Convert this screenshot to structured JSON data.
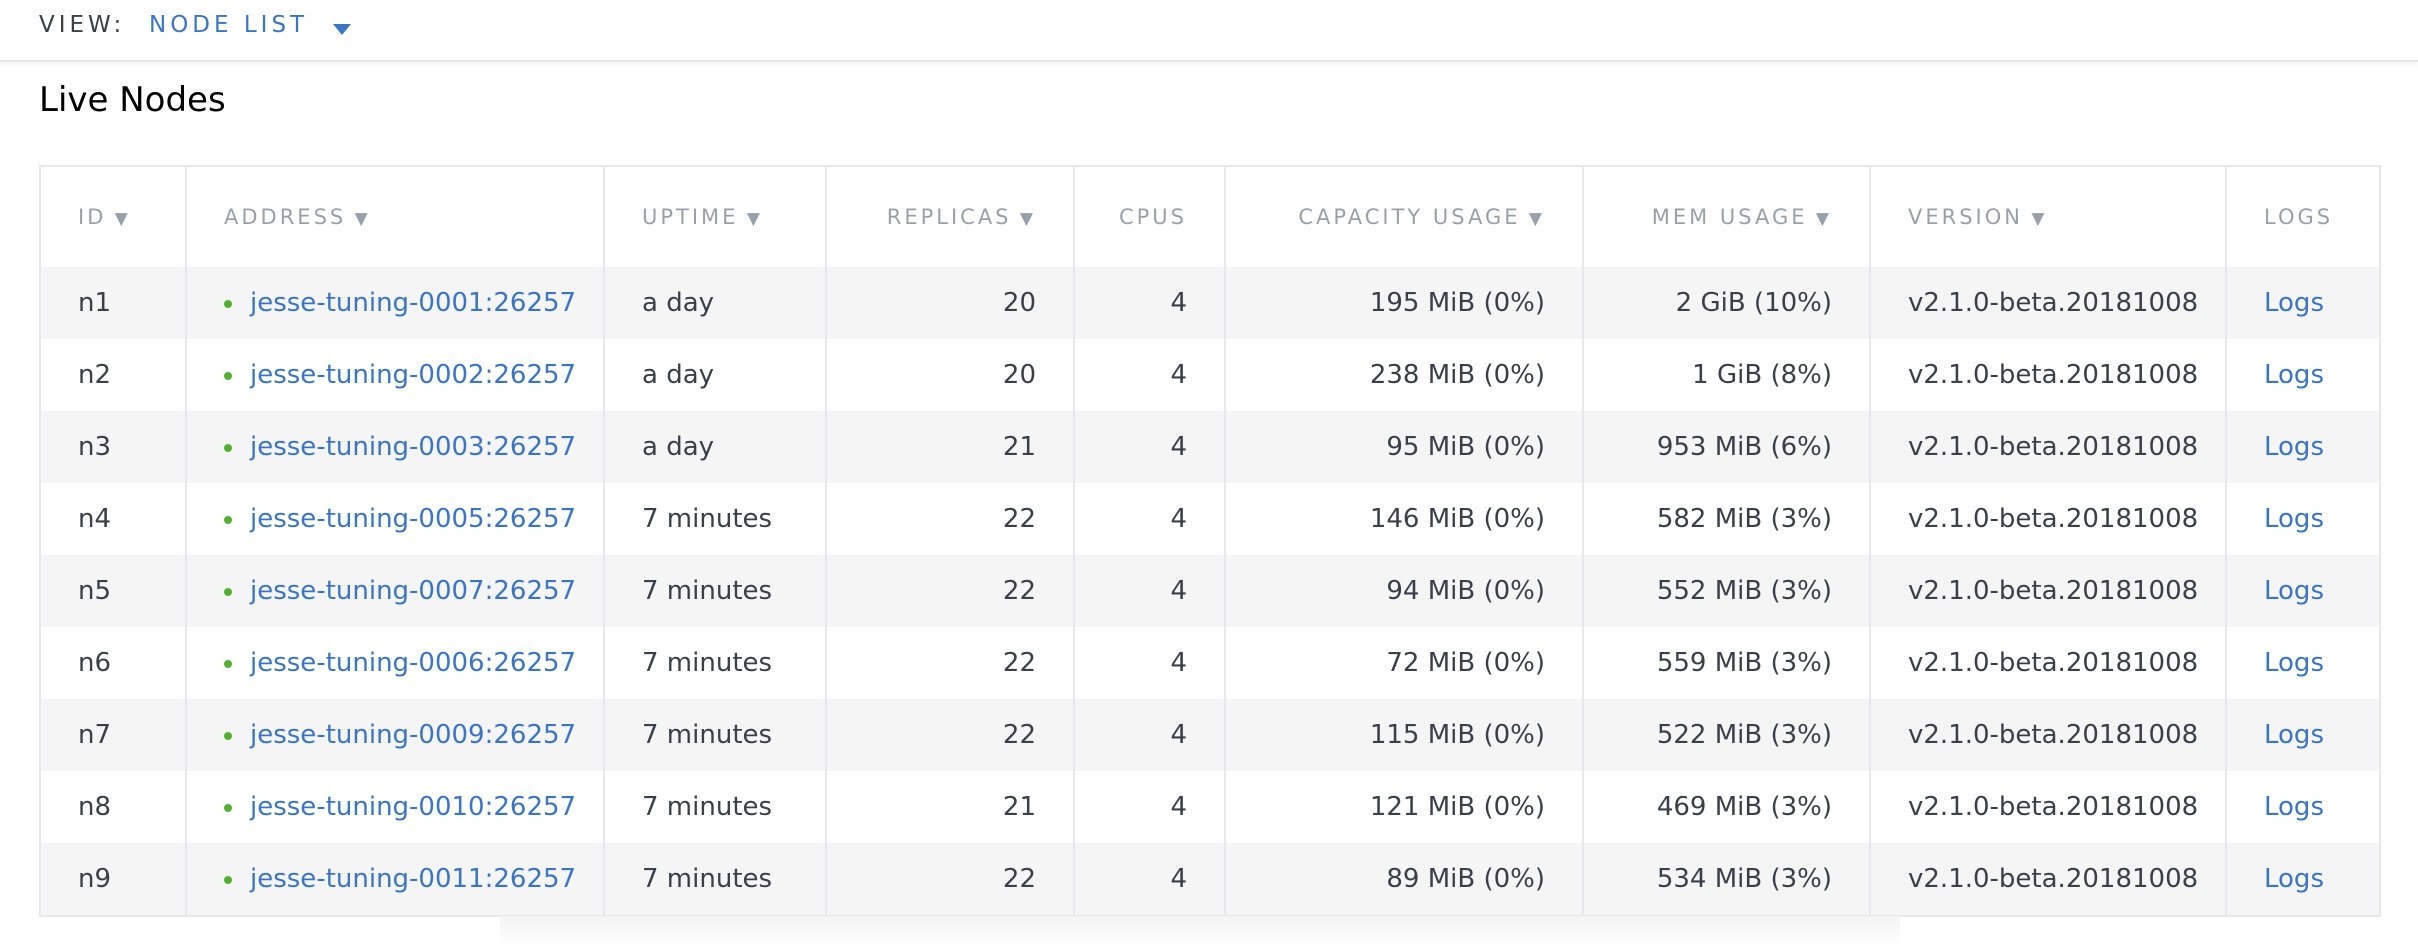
{
  "header": {
    "view_label": "VIEW:",
    "view_value": "NODE LIST"
  },
  "title": "Live Nodes",
  "table": {
    "columns": [
      "ID",
      "ADDRESS",
      "UPTIME",
      "REPLICAS",
      "CPUS",
      "CAPACITY USAGE",
      "MEM USAGE",
      "VERSION",
      "LOGS"
    ],
    "rows": [
      [
        "n1",
        "jesse-tuning-0001:26257",
        "a day",
        "20",
        "4",
        "195 MiB (0%)",
        "2 GiB (10%)",
        "v2.1.0-beta.20181008",
        "Logs"
      ],
      [
        "n2",
        "jesse-tuning-0002:26257",
        "a day",
        "20",
        "4",
        "238 MiB (0%)",
        "1 GiB (8%)",
        "v2.1.0-beta.20181008",
        "Logs"
      ],
      [
        "n3",
        "jesse-tuning-0003:26257",
        "a day",
        "21",
        "4",
        "95 MiB (0%)",
        "953 MiB (6%)",
        "v2.1.0-beta.20181008",
        "Logs"
      ],
      [
        "n4",
        "jesse-tuning-0005:26257",
        "7 minutes",
        "22",
        "4",
        "146 MiB (0%)",
        "582 MiB (3%)",
        "v2.1.0-beta.20181008",
        "Logs"
      ],
      [
        "n5",
        "jesse-tuning-0007:26257",
        "7 minutes",
        "22",
        "4",
        "94 MiB (0%)",
        "552 MiB (3%)",
        "v2.1.0-beta.20181008",
        "Logs"
      ],
      [
        "n6",
        "jesse-tuning-0006:26257",
        "7 minutes",
        "22",
        "4",
        "72 MiB (0%)",
        "559 MiB (3%)",
        "v2.1.0-beta.20181008",
        "Logs"
      ],
      [
        "n7",
        "jesse-tuning-0009:26257",
        "7 minutes",
        "22",
        "4",
        "115 MiB (0%)",
        "522 MiB (3%)",
        "v2.1.0-beta.20181008",
        "Logs"
      ],
      [
        "n8",
        "jesse-tuning-0010:26257",
        "7 minutes",
        "21",
        "4",
        "121 MiB (0%)",
        "469 MiB (3%)",
        "v2.1.0-beta.20181008",
        "Logs"
      ],
      [
        "n9",
        "jesse-tuning-0011:26257",
        "7 minutes",
        "22",
        "4",
        "89 MiB (0%)",
        "534 MiB (3%)",
        "v2.1.0-beta.20181008",
        "Logs"
      ]
    ]
  }
}
